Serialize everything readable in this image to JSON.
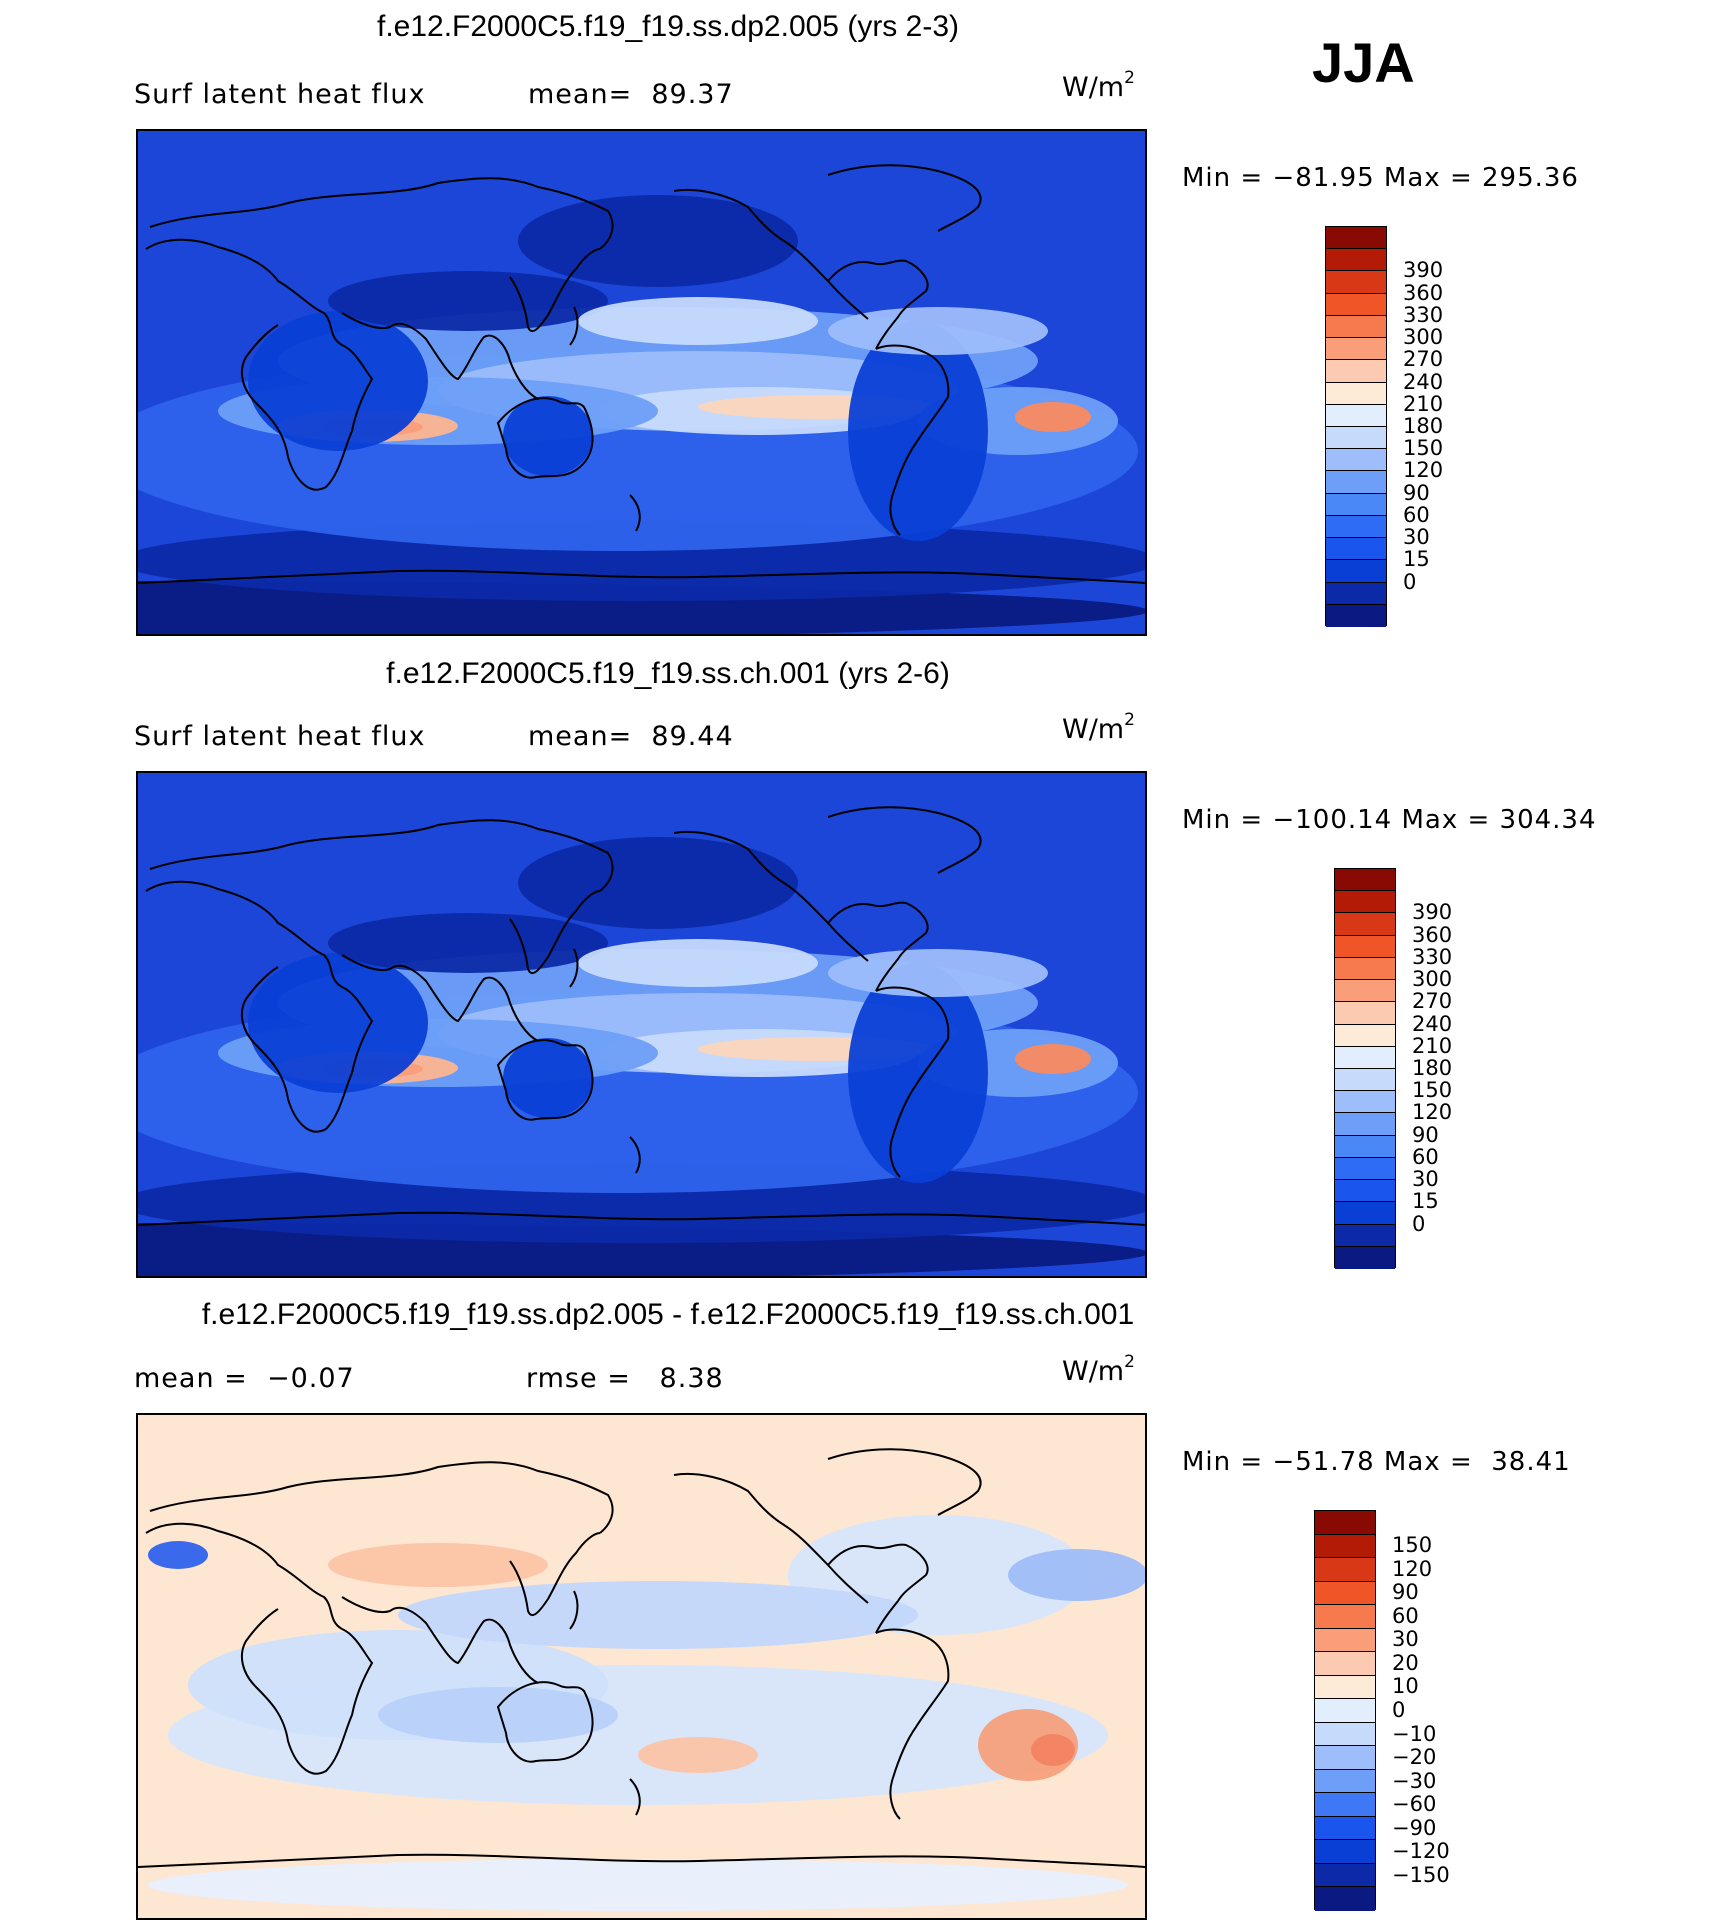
{
  "season": "JJA",
  "panels": [
    {
      "title": "f.e12.F2000C5.f19_f19.ss.dp2.005 (yrs 2-3)",
      "left_label": "Surf latent heat flux",
      "right_label": "mean=  89.37",
      "units": "W/m",
      "units_sup": "2",
      "minmax": "Min = −81.95 Max = 295.36",
      "field": "absolute",
      "colorbar": {
        "colors": [
          "#0a1a82",
          "#0c2aa8",
          "#0a3fd6",
          "#1a55ee",
          "#2e6cf5",
          "#4a88f7",
          "#6d9ff8",
          "#9dbdfb",
          "#c6dafc",
          "#e2eefd",
          "#fdebd8",
          "#fccab0",
          "#fa9e7a",
          "#f77a4e",
          "#f05528",
          "#d83815",
          "#b31b06",
          "#880a02"
        ],
        "labels": [
          "390",
          "360",
          "330",
          "300",
          "270",
          "240",
          "210",
          "180",
          "150",
          "120",
          "90",
          "60",
          "30",
          "15",
          "0"
        ]
      }
    },
    {
      "title": "f.e12.F2000C5.f19_f19.ss.ch.001 (yrs 2-6)",
      "left_label": "Surf latent heat flux",
      "right_label": "mean=  89.44",
      "units": "W/m",
      "units_sup": "2",
      "minmax": "Min = −100.14 Max = 304.34",
      "field": "absolute",
      "colorbar": {
        "colors": [
          "#0a1a82",
          "#0c2aa8",
          "#0a3fd6",
          "#1a55ee",
          "#2e6cf5",
          "#4a88f7",
          "#6d9ff8",
          "#9dbdfb",
          "#c6dafc",
          "#e2eefd",
          "#fdebd8",
          "#fccab0",
          "#fa9e7a",
          "#f77a4e",
          "#f05528",
          "#d83815",
          "#b31b06",
          "#880a02"
        ],
        "labels": [
          "390",
          "360",
          "330",
          "300",
          "270",
          "240",
          "210",
          "180",
          "150",
          "120",
          "90",
          "60",
          "30",
          "15",
          "0"
        ]
      }
    },
    {
      "title": "f.e12.F2000C5.f19_f19.ss.dp2.005 - f.e12.F2000C5.f19_f19.ss.ch.001",
      "left_label": "mean =  −0.07",
      "right_label": "rmse =   8.38",
      "units": "W/m",
      "units_sup": "2",
      "minmax": "Min = −51.78 Max =  38.41",
      "field": "difference",
      "colorbar": {
        "colors": [
          "#0a1a82",
          "#0c2aa8",
          "#0a3fd6",
          "#1a55ee",
          "#3f78f5",
          "#6d9ff8",
          "#9dbdfb",
          "#c6dafc",
          "#e2eefd",
          "#fdebd8",
          "#fccab0",
          "#fa9e7a",
          "#f77a4e",
          "#f05528",
          "#d83815",
          "#b31b06",
          "#880a02"
        ],
        "labels": [
          "150",
          "120",
          "90",
          "60",
          "30",
          "20",
          "10",
          "0",
          "−10",
          "−20",
          "−30",
          "−60",
          "−90",
          "−120",
          "−150"
        ]
      }
    }
  ]
}
